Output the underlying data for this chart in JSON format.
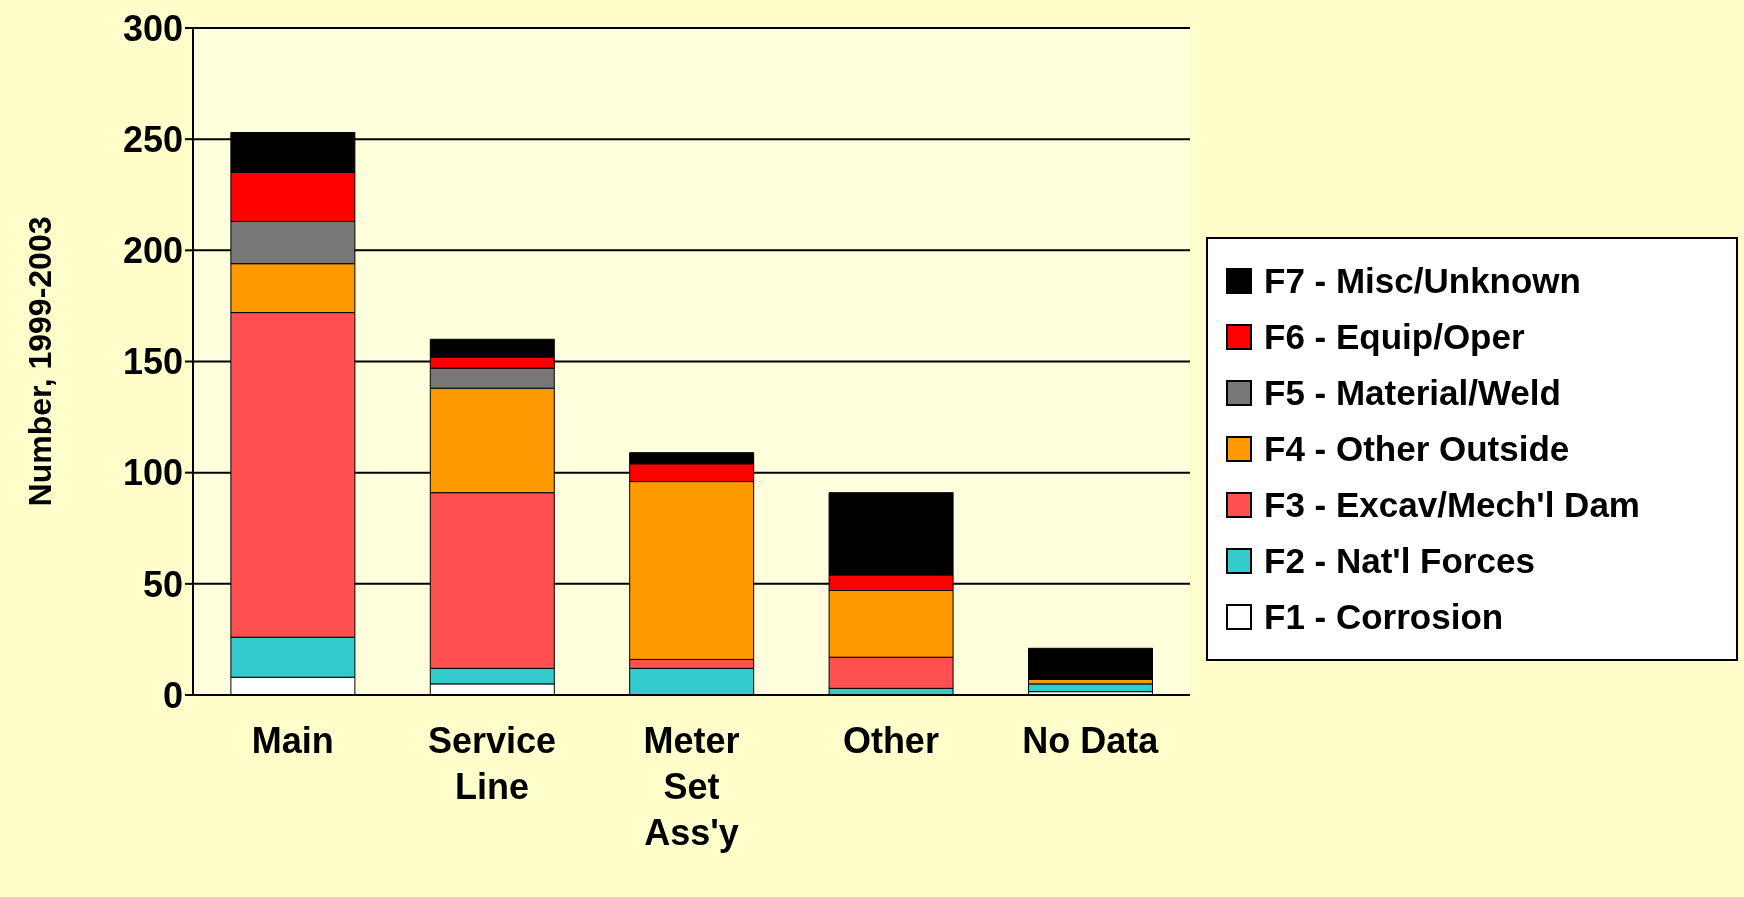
{
  "chart_data": {
    "type": "bar",
    "stacked": true,
    "ylabel": "Number, 1999-2003",
    "categories": [
      "Main",
      "Service Line",
      "Meter Set Ass'y",
      "Other",
      "No Data"
    ],
    "ylim": [
      0,
      300
    ],
    "yticks": [
      0,
      50,
      100,
      150,
      200,
      250,
      300
    ],
    "grid": "y",
    "legend": "right",
    "series": [
      {
        "name": "F1 - Corrosion",
        "color": "#ffffff",
        "values": [
          8,
          5,
          0,
          null,
          1.5
        ]
      },
      {
        "name": "F2 - Nat'l Forces",
        "color": "#33cccc",
        "values": [
          18,
          7,
          12,
          3,
          3.5
        ]
      },
      {
        "name": "F3 - Excav/Mech'l Dam",
        "color": "#ff5050",
        "values": [
          146,
          79,
          4,
          14,
          0
        ]
      },
      {
        "name": "F4 - Other Outside",
        "color": "#ff9900",
        "values": [
          22,
          47,
          80,
          30,
          2
        ]
      },
      {
        "name": "F5 - Material/Weld",
        "color": "#777777",
        "values": [
          19,
          9,
          0,
          0,
          0
        ]
      },
      {
        "name": "F6 - Equip/Oper",
        "color": "#ff0000",
        "values": [
          22,
          5,
          8,
          7,
          0
        ]
      },
      {
        "name": "F7 - Misc/Unknown",
        "color": "#000000",
        "values": [
          18,
          8,
          5,
          37,
          14
        ]
      }
    ]
  }
}
